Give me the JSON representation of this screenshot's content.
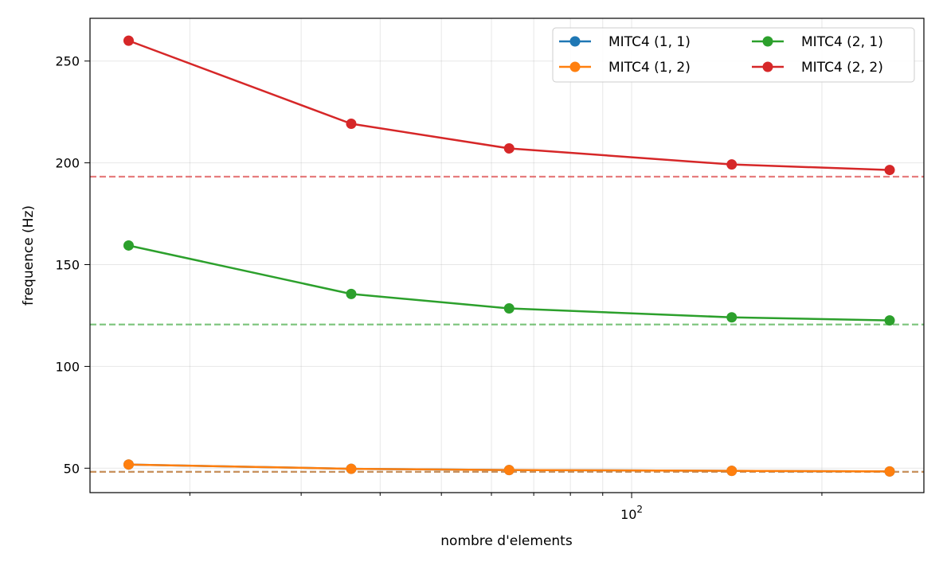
{
  "chart_data": {
    "type": "line",
    "xscale": "log",
    "x": [
      16,
      36,
      64,
      144,
      256
    ],
    "xlabel": "nombre d'elements",
    "ylabel": "frequence (Hz)",
    "xlim": [
      13.9,
      290
    ],
    "ylim": [
      38,
      271
    ],
    "yticks": [
      50,
      100,
      150,
      200,
      250
    ],
    "xticks": [
      {
        "value": 100,
        "base": "10",
        "exp": "2"
      }
    ],
    "grid": true,
    "legend_position": "upper right",
    "series": [
      {
        "name": "MITC4 (1, 1)",
        "color": "#1f77b4",
        "values": [
          51.8,
          49.7,
          49.1,
          48.7,
          48.4
        ]
      },
      {
        "name": "MITC4 (1, 2)",
        "color": "#ff7f0e",
        "values": [
          51.8,
          49.7,
          49.1,
          48.7,
          48.4
        ]
      },
      {
        "name": "MITC4 (2, 1)",
        "color": "#2ca02c",
        "values": [
          159.4,
          135.6,
          128.5,
          124.1,
          122.6
        ]
      },
      {
        "name": "MITC4 (2, 2)",
        "color": "#d62728",
        "values": [
          260.0,
          219.2,
          207.1,
          199.2,
          196.5
        ]
      }
    ],
    "reference_lines": [
      {
        "value": 48.2,
        "color": "#1f77b4"
      },
      {
        "value": 48.2,
        "color": "#ff7f0e"
      },
      {
        "value": 120.6,
        "color": "#2ca02c"
      },
      {
        "value": 193.2,
        "color": "#d62728"
      }
    ]
  }
}
